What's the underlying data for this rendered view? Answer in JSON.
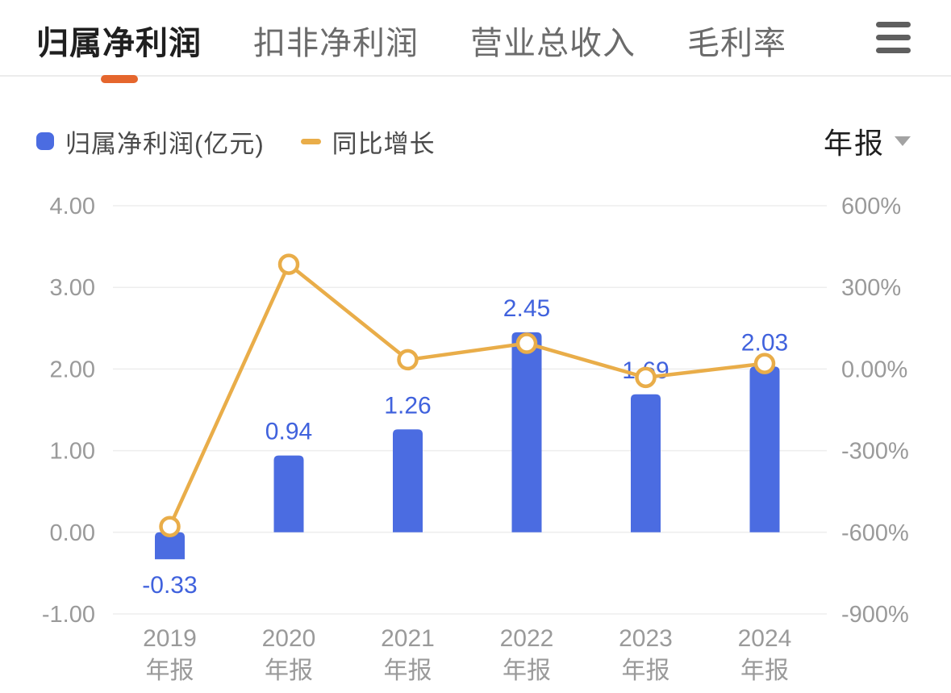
{
  "header": {
    "tabs": [
      {
        "label": "归属净利润",
        "active": true
      },
      {
        "label": "扣非净利润",
        "active": false
      },
      {
        "label": "营业总收入",
        "active": false
      },
      {
        "label": "毛利率",
        "active": false
      }
    ],
    "active_underline_color": "#e5662d"
  },
  "legend": {
    "bar": {
      "label": "归属净利润(亿元)",
      "color": "#4b6ce1"
    },
    "line": {
      "label": "同比增长",
      "color": "#e9ad49"
    }
  },
  "period_selector": {
    "value": "年报"
  },
  "chart_data": {
    "type": "bar",
    "subtype": "bar+line combo, dual axis",
    "categories": [
      {
        "year": "2019",
        "period": "年报"
      },
      {
        "year": "2020",
        "period": "年报"
      },
      {
        "year": "2021",
        "period": "年报"
      },
      {
        "year": "2022",
        "period": "年报"
      },
      {
        "year": "2023",
        "period": "年报"
      },
      {
        "year": "2024",
        "period": "年报"
      }
    ],
    "series": [
      {
        "name": "归属净利润(亿元)",
        "type": "bar",
        "axis": "left",
        "unit": "亿元",
        "color": "#4b6ce1",
        "values": [
          -0.33,
          0.94,
          1.26,
          2.45,
          1.69,
          2.03
        ],
        "labels": [
          "-0.33",
          "0.94",
          "1.26",
          "2.45",
          "1.69",
          "2.03"
        ]
      },
      {
        "name": "同比增长",
        "type": "line",
        "axis": "right",
        "unit": "%",
        "color": "#e9ad49",
        "marker": "hollow-circle",
        "values": [
          -579,
          384.8,
          34.0,
          94.4,
          -31.0,
          20.1
        ]
      }
    ],
    "left_axis": {
      "min": -1,
      "max": 4,
      "tick_values": [
        4,
        3,
        2,
        1,
        0,
        -1
      ],
      "tick_labels": [
        "4.00",
        "3.00",
        "2.00",
        "1.00",
        "0.00",
        "-1.00"
      ]
    },
    "right_axis": {
      "min": -900,
      "max": 600,
      "tick_values": [
        600,
        300,
        0,
        -300,
        -600,
        -900
      ],
      "tick_labels": [
        "600%",
        "300%",
        "0.00%",
        "-300%",
        "-600%",
        "-900%"
      ]
    },
    "grid": true,
    "legend_position": "top-left",
    "colors": {
      "data_label": "#4062dd",
      "axis_text": "#9a9a9a",
      "gridline": "#ededed"
    }
  }
}
